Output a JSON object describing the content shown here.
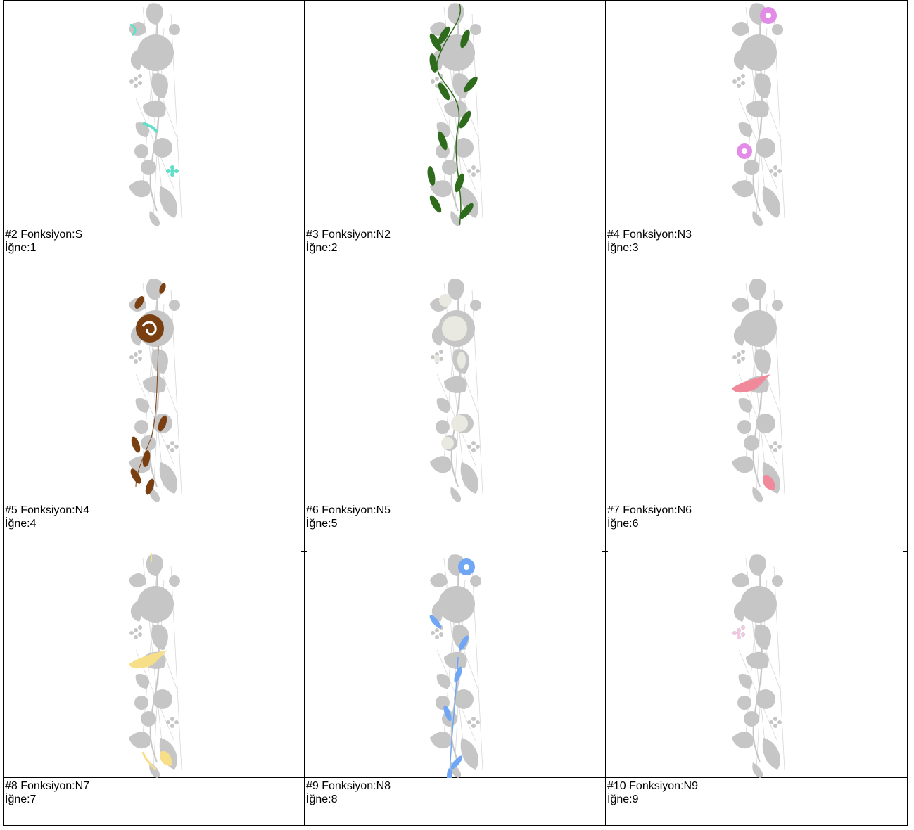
{
  "colors": {
    "base": "#c6c6c6",
    "stitch_line": "#d8d8d8"
  },
  "cells": [
    {
      "title": "#2 Fonksiyon:S",
      "needle": "İğne:1",
      "color": "#5fe0c8",
      "parts": [
        "leaf-top-left-tip",
        "leaf-mid-left",
        "dots-lower"
      ]
    },
    {
      "title": "#3 Fonksiyon:N2",
      "needle": "İğne:2",
      "color": "#2e6b1c",
      "parts": [
        "vine-leaves"
      ]
    },
    {
      "title": "#4 Fonksiyon:N3",
      "needle": "İğne:3",
      "color": "#e28ce8",
      "parts": [
        "flower-top",
        "flower-mid"
      ]
    },
    {
      "title": "#5 Fonksiyon:N4",
      "needle": "İğne:4",
      "color": "#7a3f10",
      "parts": [
        "rose-center",
        "leaves-top",
        "leaves-lower"
      ]
    },
    {
      "title": "#6 Fonksiyon:N5",
      "needle": "İğne:5",
      "color": "#e9e9e1",
      "parts": [
        "rose-pale",
        "leaves-pale"
      ]
    },
    {
      "title": "#7 Fonksiyon:N6",
      "needle": "İğne:6",
      "color": "#f08a9a",
      "parts": [
        "lily-mid",
        "lily-bottom"
      ]
    },
    {
      "title": "#8 Fonksiyon:N7",
      "needle": "İğne:7",
      "color": "#f7df8a",
      "parts": [
        "lily-mid",
        "lily-bottom",
        "stem-top"
      ]
    },
    {
      "title": "#9 Fonksiyon:N8",
      "needle": "İğne:8",
      "color": "#6fa6f5",
      "parts": [
        "flower-top",
        "leaves-blue"
      ]
    },
    {
      "title": "#10 Fonksiyon:N9",
      "needle": "İğne:9",
      "color": "#f3c6e2",
      "parts": [
        "dots-upper"
      ]
    }
  ]
}
